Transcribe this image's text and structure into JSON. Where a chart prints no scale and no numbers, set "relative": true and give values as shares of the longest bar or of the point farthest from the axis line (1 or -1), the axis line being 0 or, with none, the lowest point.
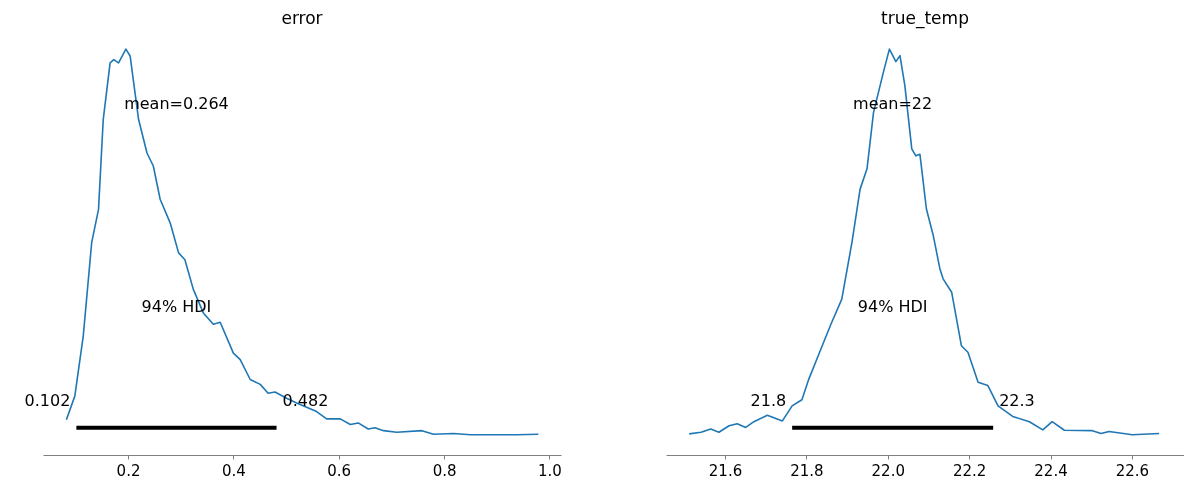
{
  "chart_data": [
    {
      "type": "line",
      "title": "error",
      "relative": true,
      "xlim": [
        0.0386,
        1.022
      ],
      "xticks": [
        0.2,
        0.4,
        0.6,
        0.8,
        {
          "value": 1,
          "label": "1.0"
        }
      ],
      "annotations": [
        "mean=0.264",
        "94% HDI",
        {
          "text": "0.102",
          "x": 0.102,
          "y": 0.067
        },
        {
          "text": "0.482",
          "x": 0.482,
          "y": 0.067
        }
      ],
      "series": [
        {
          "color": "#1f77b4",
          "x": [
            0.083,
            0.099,
            0.115,
            0.131,
            0.144,
            0.153,
            0.166,
            0.173,
            0.182,
            0.196,
            0.204,
            0.22,
            0.236,
            0.248,
            0.261,
            0.28,
            0.296,
            0.308,
            0.324,
            0.343,
            0.362,
            0.375,
            0.4,
            0.413,
            0.432,
            0.451,
            0.466,
            0.479,
            0.501,
            0.52,
            0.558,
            0.577,
            0.603,
            0.622,
            0.637,
            0.656,
            0.669,
            0.685,
            0.71,
            0.758,
            0.78,
            0.818,
            0.85,
            0.938,
            0.979
          ],
          "values": [
            0.087,
            0.145,
            0.293,
            0.523,
            0.605,
            0.827,
            0.966,
            0.974,
            0.966,
            1,
            0.983,
            0.827,
            0.744,
            0.712,
            0.63,
            0.572,
            0.498,
            0.481,
            0.408,
            0.35,
            0.322,
            0.327,
            0.251,
            0.235,
            0.186,
            0.174,
            0.152,
            0.155,
            0.14,
            0.128,
            0.107,
            0.089,
            0.089,
            0.075,
            0.079,
            0.064,
            0.067,
            0.06,
            0.056,
            0.06,
            0.051,
            0.053,
            0.05,
            0.05,
            0.051
          ]
        },
        {
          "color": "#000000",
          "x": [
            0.102,
            0.482
          ],
          "values": [
            0.067,
            0.067
          ]
        }
      ]
    },
    {
      "type": "line",
      "title": "true_temp",
      "relative": true,
      "xlim": [
        21.455,
        22.728
      ],
      "xticks": [
        21.6,
        21.8,
        {
          "value": 22,
          "label": "22.0"
        },
        22.2,
        22.4,
        22.6
      ],
      "annotations": [
        "mean=22",
        "94% HDI",
        {
          "text": "21.8",
          "x": 21.765,
          "y": 0.067
        },
        {
          "text": "22.3",
          "x": 22.259,
          "y": 0.067
        }
      ],
      "series": [
        {
          "color": "#1f77b4",
          "x": [
            21.512,
            21.541,
            21.565,
            21.585,
            21.61,
            21.63,
            21.651,
            21.671,
            21.704,
            21.741,
            21.765,
            21.789,
            21.806,
            21.834,
            21.859,
            21.887,
            21.912,
            21.932,
            21.949,
            21.965,
            21.989,
            22.004,
            22.02,
            22.03,
            22.042,
            22.059,
            22.069,
            22.079,
            22.095,
            22.112,
            22.128,
            22.136,
            22.157,
            22.181,
            22.197,
            22.222,
            22.246,
            22.271,
            22.307,
            22.348,
            22.381,
            22.404,
            22.434,
            22.503,
            22.524,
            22.544,
            22.601,
            22.667
          ],
          "values": [
            0.052,
            0.056,
            0.064,
            0.056,
            0.072,
            0.077,
            0.068,
            0.082,
            0.098,
            0.084,
            0.121,
            0.136,
            0.187,
            0.257,
            0.319,
            0.384,
            0.524,
            0.655,
            0.705,
            0.844,
            0.942,
            1,
            0.969,
            0.984,
            0.91,
            0.754,
            0.737,
            0.741,
            0.606,
            0.54,
            0.459,
            0.434,
            0.401,
            0.269,
            0.253,
            0.179,
            0.171,
            0.121,
            0.095,
            0.082,
            0.062,
            0.082,
            0.061,
            0.06,
            0.053,
            0.058,
            0.05,
            0.053
          ]
        },
        {
          "color": "#000000",
          "x": [
            21.765,
            22.259
          ],
          "values": [
            0.067,
            0.067
          ]
        }
      ]
    }
  ]
}
